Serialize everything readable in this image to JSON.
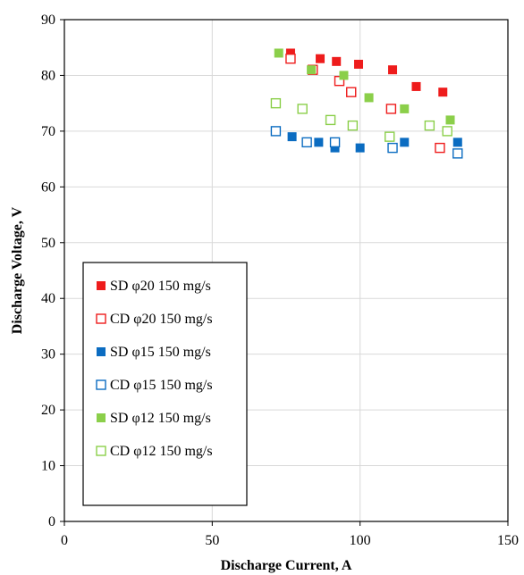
{
  "chart_data": {
    "type": "scatter",
    "title": "",
    "xlabel": "Discharge Current, A",
    "ylabel": "Discharge Voltage, V",
    "xlim": [
      0,
      150
    ],
    "ylim": [
      0,
      90
    ],
    "xticks": [
      0,
      50,
      100,
      150
    ],
    "yticks": [
      0,
      10,
      20,
      30,
      40,
      50,
      60,
      70,
      80,
      90
    ],
    "grid": true,
    "legend_position": "bottom-left",
    "series": [
      {
        "name": "SD φ20 150 mg/s",
        "color": "#ee1c1c",
        "marker": "filled-square",
        "points": [
          [
            76.5,
            84
          ],
          [
            86.5,
            83
          ],
          [
            92,
            82.5
          ],
          [
            99.5,
            82
          ],
          [
            111,
            81
          ],
          [
            119,
            78
          ],
          [
            128,
            77
          ]
        ]
      },
      {
        "name": "CD φ20 150 mg/s",
        "color": "#ee1c1c",
        "marker": "open-square",
        "points": [
          [
            76.5,
            83
          ],
          [
            84,
            81
          ],
          [
            93,
            79
          ],
          [
            97,
            77
          ],
          [
            110.5,
            74
          ],
          [
            127,
            67
          ]
        ]
      },
      {
        "name": "SD φ15 150 mg/s",
        "color": "#0b6cc1",
        "marker": "filled-square",
        "points": [
          [
            77,
            69
          ],
          [
            86,
            68
          ],
          [
            91.5,
            67
          ],
          [
            100,
            67
          ],
          [
            115,
            68
          ],
          [
            133,
            68
          ]
        ]
      },
      {
        "name": "CD φ15 150 mg/s",
        "color": "#0b6cc1",
        "marker": "open-square",
        "points": [
          [
            71.5,
            70
          ],
          [
            82,
            68
          ],
          [
            91.5,
            68
          ],
          [
            111,
            67
          ],
          [
            133,
            66
          ]
        ]
      },
      {
        "name": "SD φ12 150 mg/s",
        "color": "#8bcf4a",
        "marker": "filled-square",
        "points": [
          [
            72.5,
            84
          ],
          [
            83.5,
            81
          ],
          [
            94.5,
            80
          ],
          [
            103,
            76
          ],
          [
            115,
            74
          ],
          [
            130.5,
            72
          ]
        ]
      },
      {
        "name": "CD φ12 150 mg/s",
        "color": "#8bcf4a",
        "marker": "open-square",
        "points": [
          [
            71.5,
            75
          ],
          [
            80.5,
            74
          ],
          [
            90,
            72
          ],
          [
            97.5,
            71
          ],
          [
            110,
            69
          ],
          [
            123.5,
            71
          ],
          [
            129.5,
            70
          ]
        ]
      }
    ]
  }
}
